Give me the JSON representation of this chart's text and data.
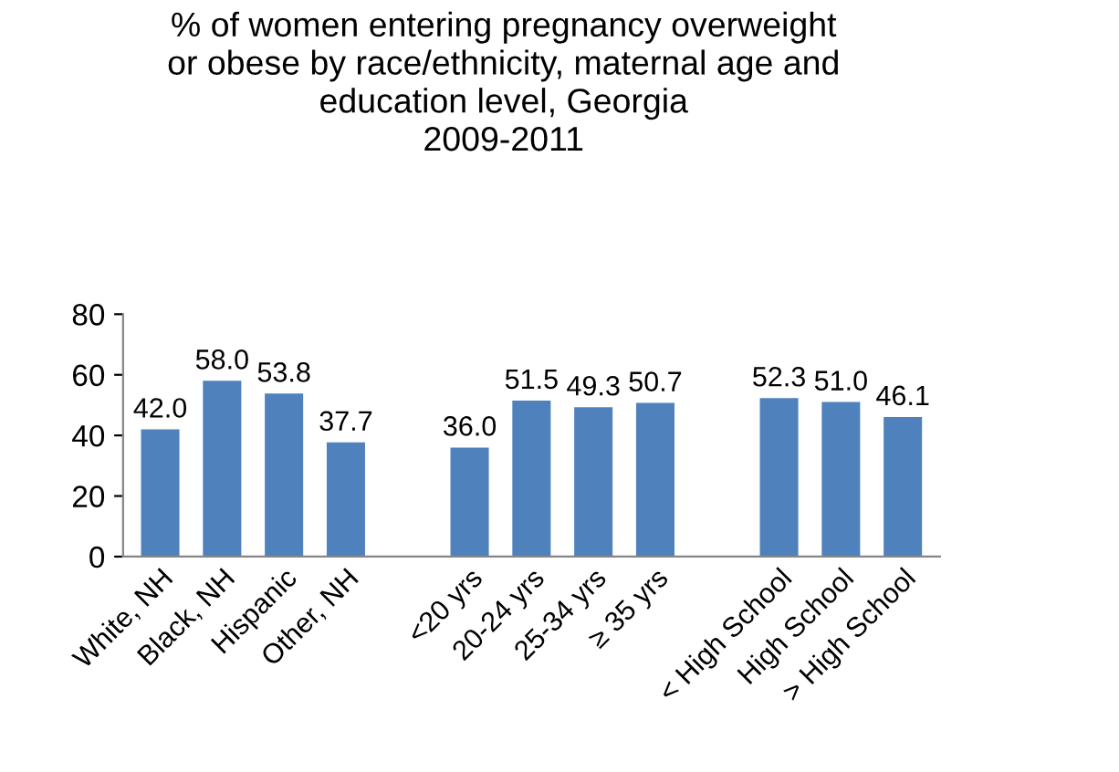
{
  "chart_data": {
    "type": "bar",
    "title": "% of women entering pregnancy overweight\nor obese by race/ethnicity, maternal age and\neducation level, Georgia\n2009-2011",
    "categories": [
      "White, NH",
      "Black, NH",
      "Hispanic",
      "Other, NH",
      null,
      "<20 yrs",
      "20-24 yrs",
      "25-34 yrs",
      "≥ 35 yrs",
      null,
      "< High School",
      "High School",
      "> High School"
    ],
    "values": [
      42.0,
      58.0,
      53.8,
      37.7,
      null,
      36.0,
      51.5,
      49.3,
      50.7,
      null,
      52.3,
      51.0,
      46.1
    ],
    "value_labels": [
      "42.0",
      "58.0",
      "53.8",
      "37.7",
      null,
      "36.0",
      "51.5",
      "49.3",
      "50.7",
      null,
      "52.3",
      "51.0",
      "46.1"
    ],
    "color": "#4f81bd",
    "ylim": [
      0,
      80
    ],
    "yticks": [
      0,
      20,
      40,
      60,
      80
    ],
    "grid": false,
    "legend": false
  }
}
